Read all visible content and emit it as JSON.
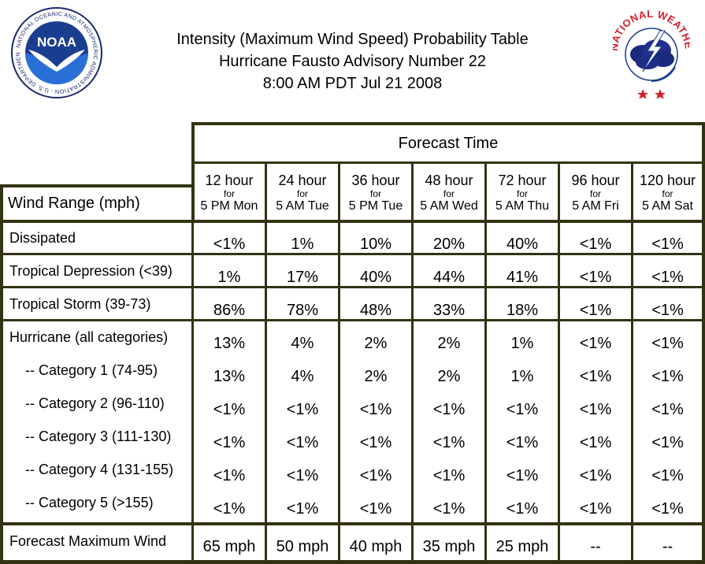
{
  "title": {
    "line1": "Intensity (Maximum Wind Speed) Probability Table",
    "line2": "Hurricane Fausto Advisory Number 22",
    "line3": "8:00 AM PDT Jul 21 2008"
  },
  "logos": {
    "noaa": {
      "icon": "noaa-logo-icon",
      "text": "NOAA",
      "ring_text": "NATIONAL OCEANIC AND ATMOSPHERIC ADMINISTRATION · U.S. DEPARTMENT OF COMMERCE"
    },
    "nws": {
      "icon": "nws-logo-icon",
      "ring_text": "NATIONAL WEATHER SERVICE"
    }
  },
  "table": {
    "forecast_time_label": "Forecast Time",
    "wind_range_label": "Wind Range (mph)",
    "columns": [
      {
        "hours": "12 hour",
        "for": "for",
        "when": "5 PM Mon"
      },
      {
        "hours": "24 hour",
        "for": "for",
        "when": "5 AM Tue"
      },
      {
        "hours": "36 hour",
        "for": "for",
        "when": "5 PM Tue"
      },
      {
        "hours": "48 hour",
        "for": "for",
        "when": "5 AM Wed"
      },
      {
        "hours": "72 hour",
        "for": "for",
        "when": "5 AM Thu"
      },
      {
        "hours": "96 hour",
        "for": "for",
        "when": "5 AM Fri"
      },
      {
        "hours": "120 hour",
        "for": "for",
        "when": "5 AM Sat"
      }
    ],
    "rows": [
      {
        "label": "Dissipated",
        "values": [
          "<1%",
          "1%",
          "10%",
          "20%",
          "40%",
          "<1%",
          "<1%"
        ]
      },
      {
        "label": "Tropical Depression (<39)",
        "values": [
          "1%",
          "17%",
          "40%",
          "44%",
          "41%",
          "<1%",
          "<1%"
        ]
      },
      {
        "label": "Tropical Storm (39-73)",
        "values": [
          "86%",
          "78%",
          "48%",
          "33%",
          "18%",
          "<1%",
          "<1%"
        ]
      },
      {
        "label": "Hurricane (all categories)",
        "values": [
          "13%",
          "4%",
          "2%",
          "2%",
          "1%",
          "<1%",
          "<1%"
        ]
      },
      {
        "label": "-- Category 1 (74-95)",
        "values": [
          "13%",
          "4%",
          "2%",
          "2%",
          "1%",
          "<1%",
          "<1%"
        ]
      },
      {
        "label": "-- Category 2 (96-110)",
        "values": [
          "<1%",
          "<1%",
          "<1%",
          "<1%",
          "<1%",
          "<1%",
          "<1%"
        ]
      },
      {
        "label": "-- Category 3 (111-130)",
        "values": [
          "<1%",
          "<1%",
          "<1%",
          "<1%",
          "<1%",
          "<1%",
          "<1%"
        ]
      },
      {
        "label": "-- Category 4 (131-155)",
        "values": [
          "<1%",
          "<1%",
          "<1%",
          "<1%",
          "<1%",
          "<1%",
          "<1%"
        ]
      },
      {
        "label": "-- Category 5 (>155)",
        "values": [
          "<1%",
          "<1%",
          "<1%",
          "<1%",
          "<1%",
          "<1%",
          "<1%"
        ]
      }
    ],
    "max_wind": {
      "label": "Forecast Maximum Wind",
      "values": [
        "65 mph",
        "50 mph",
        "40 mph",
        "35 mph",
        "25 mph",
        "--",
        "--"
      ]
    }
  }
}
